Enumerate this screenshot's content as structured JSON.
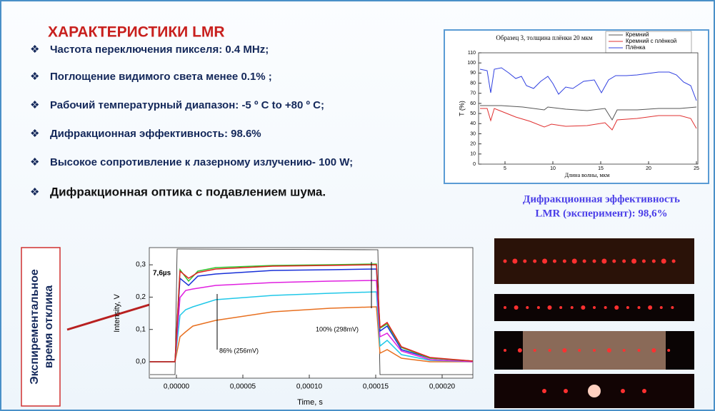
{
  "title": "ХАРАКТЕРИСТИКИ LMR",
  "bullets": [
    "Частота переключения пикселя: 0.4 MHz;",
    "Поглощение видимого света менее 0.1% ;",
    "Рабочий температурный диапазон: -5 º C to +80 º C;",
    "Дифракционная эффективность:     98.6%",
    "Высокое сопротивление к лазерному излучению- 100 W;",
    "Дифракционная оптика с подавлением шума."
  ],
  "spectrum_chart": {
    "title": "Образец 3, толщина плёнки 20 мкм",
    "legend": [
      "Кремний",
      "Кремний с плёнкой",
      "Плёнка"
    ],
    "y_label": "T (%)",
    "x_label": "Длина волны, мкм",
    "y_ticks": [
      "0",
      "10",
      "20",
      "30",
      "40",
      "50",
      "60",
      "70",
      "80",
      "90",
      "100",
      "110"
    ],
    "x_ticks": [
      "5",
      "10",
      "15",
      "20",
      "25"
    ]
  },
  "caption": [
    "Дифракционная эффективность",
    "LMR (эксперимент): 98,6%"
  ],
  "side_label": [
    "Экспирементальное",
    "время отклика"
  ],
  "response_chart": {
    "y_label": "Intensity, V",
    "x_label": "Time, s",
    "y_ticks": [
      "0,0",
      "0,1",
      "0,2",
      "0,3"
    ],
    "x_ticks": [
      "0,00000",
      "0,00005",
      "0,00010",
      "0,00015",
      "0,00020"
    ],
    "annotations": [
      "7,6µs",
      "86% (256mV)",
      "100% (298mV)"
    ]
  }
}
